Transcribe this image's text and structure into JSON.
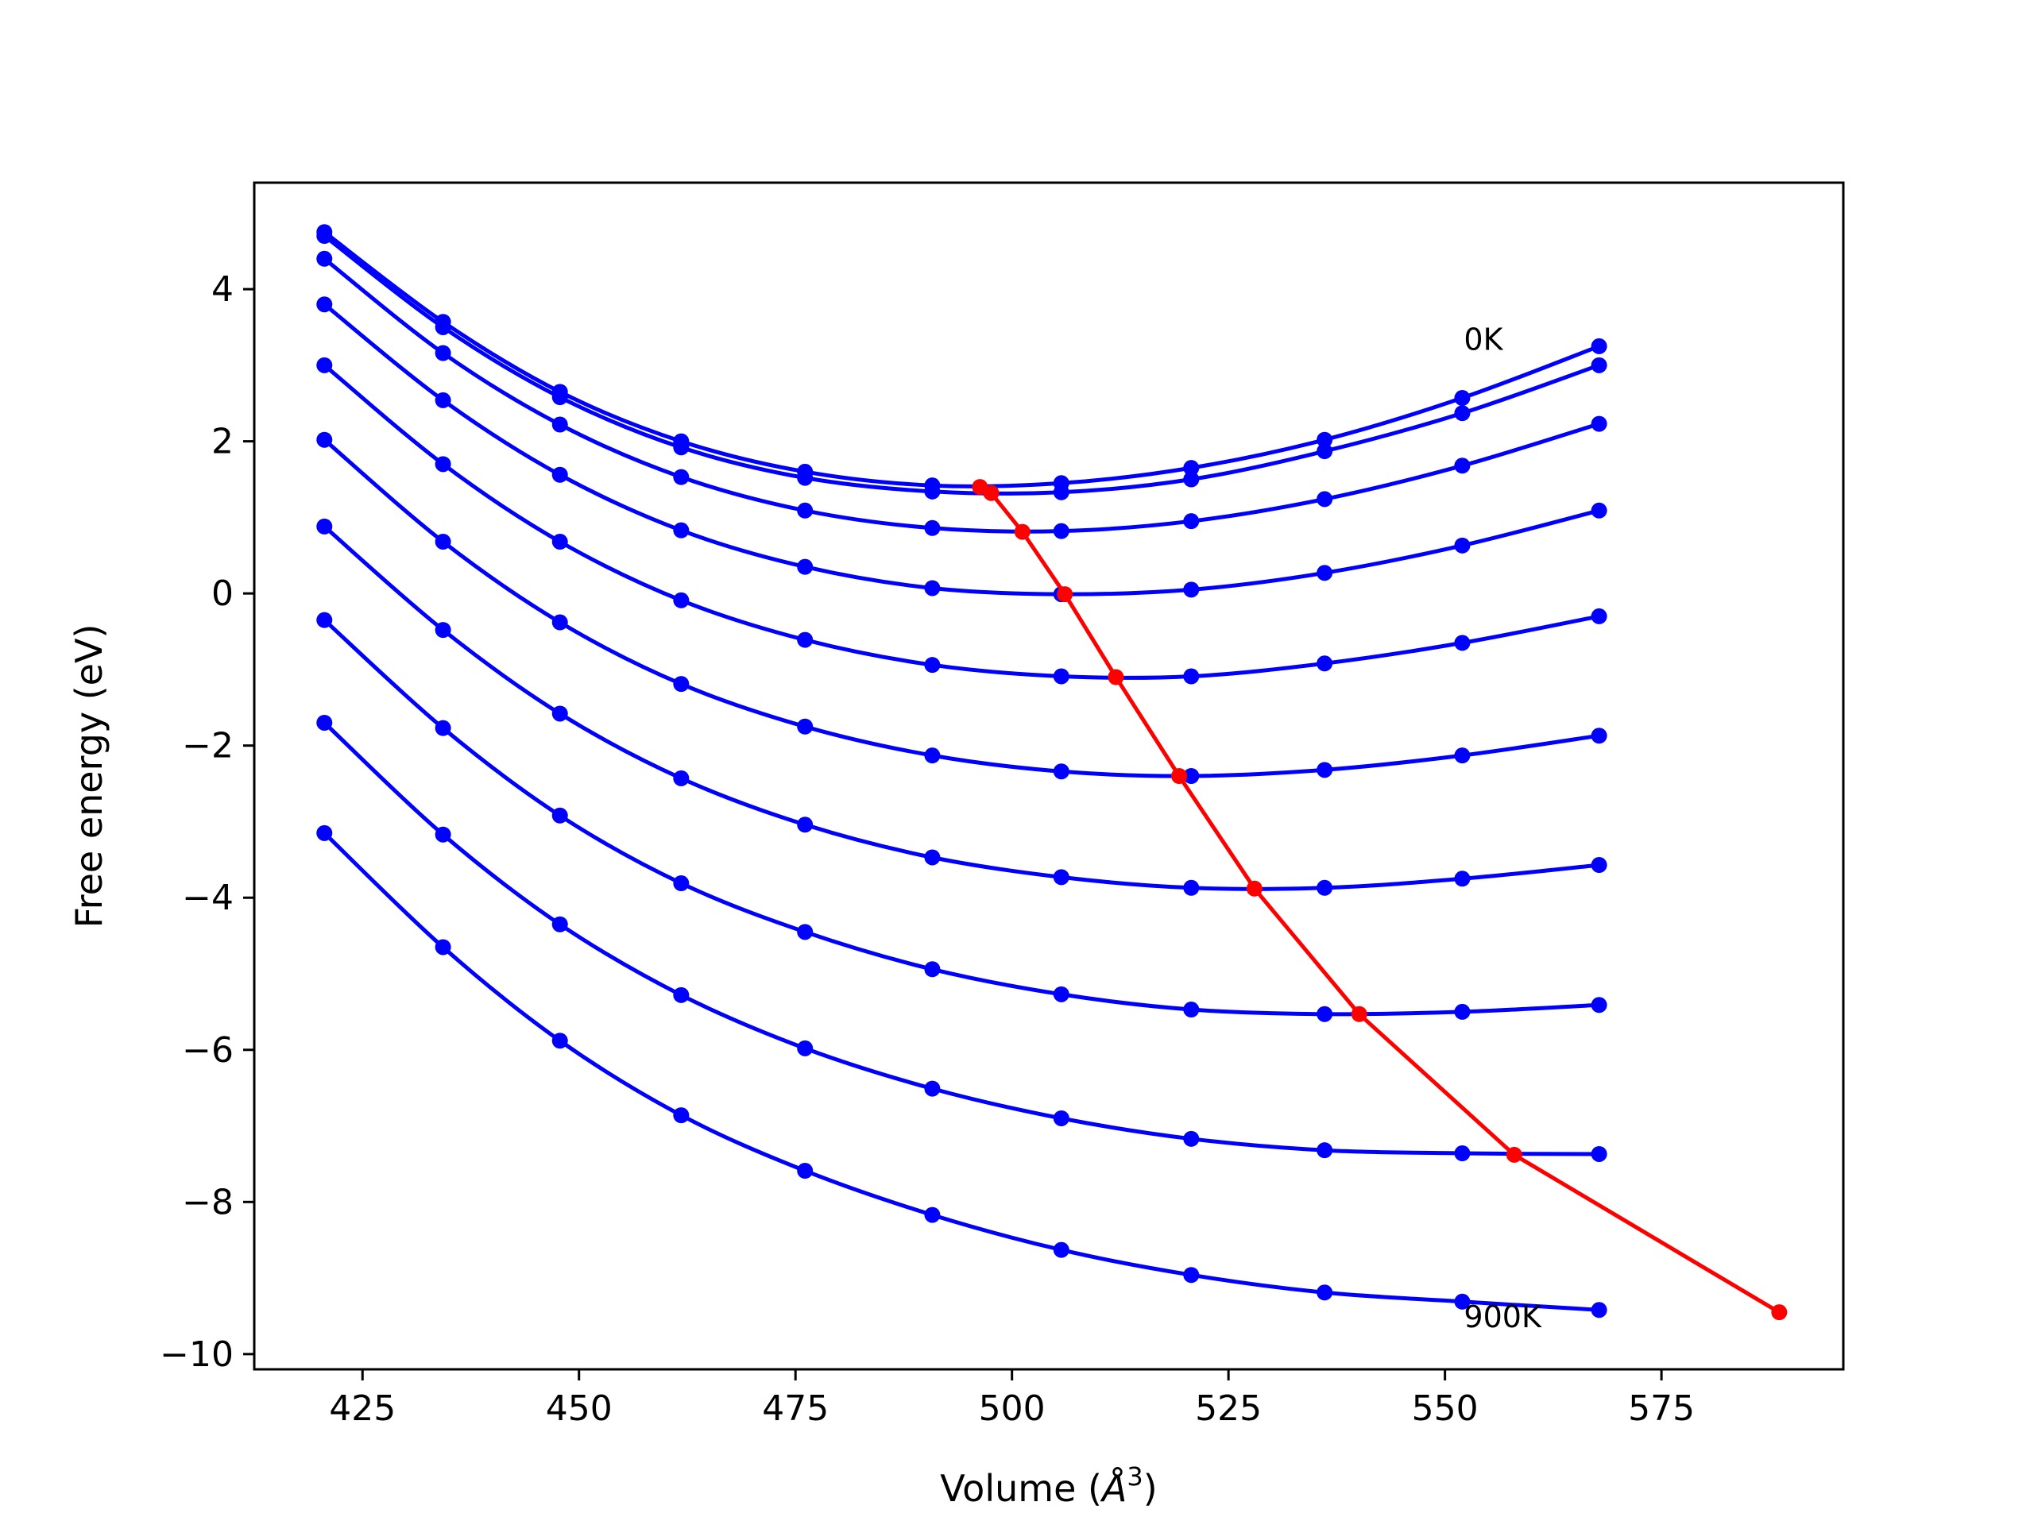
{
  "chart_data": {
    "type": "line",
    "title": "",
    "xlabel": "Volume (Å³)",
    "xlabel_parts": {
      "main": "Volume (",
      "italic": "Å",
      "sup": "3",
      "close": ")"
    },
    "ylabel": "Free energy (eV)",
    "xlim": [
      412.5,
      596.0
    ],
    "ylim": [
      -10.2,
      5.4
    ],
    "xticks": [
      425,
      450,
      475,
      500,
      525,
      550,
      575
    ],
    "yticks": [
      4,
      2,
      0,
      -2,
      -4,
      -6,
      -8,
      -10
    ],
    "xtick_labels": [
      "425",
      "450",
      "475",
      "500",
      "525",
      "550",
      "575"
    ],
    "ytick_labels": [
      "4",
      "2",
      "0",
      "−2",
      "−4",
      "−6",
      "−8",
      "−10"
    ],
    "grid": false,
    "legend": "none",
    "colors": {
      "isotherms": "#0000ff",
      "minimum_path": "#ff0000"
    },
    "annotations": [
      {
        "text": "0K",
        "x": 552.0,
        "y": 3.35
      },
      {
        "text": "900K",
        "x": 552.0,
        "y": -9.5
      }
    ],
    "x": [
      420.6,
      434.3,
      447.8,
      461.8,
      476.1,
      490.8,
      505.7,
      520.7,
      536.1,
      552.0,
      567.8
    ],
    "series": [
      {
        "values": [
          4.75,
          3.57,
          2.65,
          2.0,
          1.6,
          1.42,
          1.45,
          1.65,
          2.02,
          2.57,
          3.25
        ]
      },
      {
        "values": [
          4.7,
          3.5,
          2.58,
          1.92,
          1.52,
          1.34,
          1.33,
          1.5,
          1.87,
          2.37,
          3.0
        ]
      },
      {
        "values": [
          4.4,
          3.16,
          2.22,
          1.53,
          1.09,
          0.86,
          0.82,
          0.95,
          1.24,
          1.68,
          2.23
        ]
      },
      {
        "values": [
          3.8,
          2.54,
          1.56,
          0.83,
          0.35,
          0.07,
          -0.01,
          0.05,
          0.27,
          0.63,
          1.09
        ]
      },
      {
        "values": [
          3.0,
          1.7,
          0.68,
          -0.09,
          -0.61,
          -0.94,
          -1.09,
          -1.09,
          -0.92,
          -0.65,
          -0.3
        ]
      },
      {
        "values": [
          2.02,
          0.68,
          -0.38,
          -1.19,
          -1.75,
          -2.13,
          -2.34,
          -2.4,
          -2.32,
          -2.13,
          -1.87
        ]
      },
      {
        "values": [
          0.88,
          -0.48,
          -1.58,
          -2.43,
          -3.04,
          -3.47,
          -3.73,
          -3.87,
          -3.87,
          -3.75,
          -3.57
        ]
      },
      {
        "values": [
          -0.35,
          -1.77,
          -2.92,
          -3.81,
          -4.45,
          -4.94,
          -5.27,
          -5.47,
          -5.53,
          -5.5,
          -5.41
        ]
      },
      {
        "values": [
          -1.7,
          -3.17,
          -4.35,
          -5.28,
          -5.98,
          -6.51,
          -6.9,
          -7.17,
          -7.32,
          -7.36,
          -7.37
        ]
      },
      {
        "values": [
          -3.15,
          -4.65,
          -5.88,
          -6.86,
          -7.59,
          -8.17,
          -8.63,
          -8.96,
          -9.19,
          -9.31,
          -9.42
        ]
      }
    ],
    "minimum_path": {
      "x": [
        496.3,
        497.6,
        501.2,
        506.1,
        512.0,
        519.3,
        528.0,
        540.1,
        558.0,
        588.6
      ],
      "y": [
        1.4,
        1.32,
        0.81,
        -0.01,
        -1.1,
        -2.4,
        -3.88,
        -5.53,
        -7.38,
        -9.45
      ]
    }
  }
}
